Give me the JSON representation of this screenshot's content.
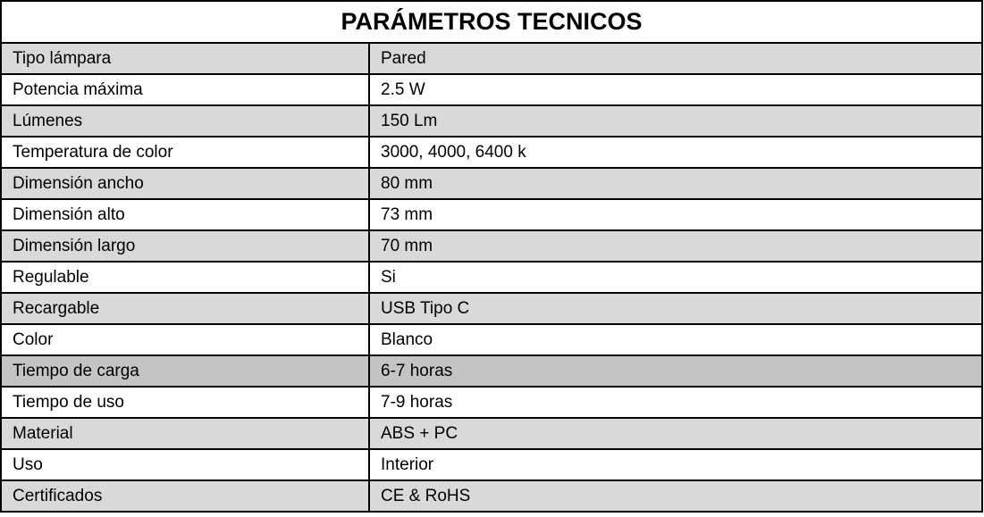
{
  "title": "PARÁMETROS TECNICOS",
  "colors": {
    "shaded_row": "#d9d9d9",
    "highlighted_row": "#c4c4c4",
    "border": "#000000"
  },
  "rows": [
    {
      "label": "Tipo lámpara",
      "value": "Pared",
      "shade": "g"
    },
    {
      "label": "Potencia máxima",
      "value": "2.5 W",
      "shade": ""
    },
    {
      "label": "Lúmenes",
      "value": "150 Lm",
      "shade": "g"
    },
    {
      "label": "Temperatura de color",
      "value": "3000, 4000, 6400 k",
      "shade": ""
    },
    {
      "label": "Dimensión ancho",
      "value": "80 mm",
      "shade": "g"
    },
    {
      "label": "Dimensión alto",
      "value": "73 mm",
      "shade": ""
    },
    {
      "label": "Dimensión largo",
      "value": "70 mm",
      "shade": "g"
    },
    {
      "label": "Regulable",
      "value": "Si",
      "shade": ""
    },
    {
      "label": "Recargable",
      "value": "USB Tipo C",
      "shade": "g"
    },
    {
      "label": "Color",
      "value": "Blanco",
      "shade": ""
    },
    {
      "label": "Tiempo de carga",
      "value": "6-7 horas",
      "shade": "d"
    },
    {
      "label": "Tiempo de uso",
      "value": "7-9 horas",
      "shade": ""
    },
    {
      "label": "Material",
      "value": "ABS + PC",
      "shade": "g"
    },
    {
      "label": "Uso",
      "value": "Interior",
      "shade": ""
    },
    {
      "label": "Certificados",
      "value": "CE & RoHS",
      "shade": "g"
    }
  ]
}
